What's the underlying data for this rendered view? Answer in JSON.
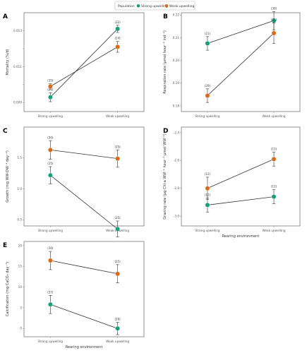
{
  "legend": {
    "title": "Population",
    "items": [
      {
        "label": "Strong upwelling",
        "color": "#1a9e77"
      },
      {
        "label": "Weak upwelling",
        "color": "#d96a1a"
      }
    ]
  },
  "chart_data": [
    {
      "panel": "A",
      "type": "line",
      "ylabel": "Mortality (%/d)",
      "xlabel": "",
      "categories": [
        "Strong upwelling",
        "Weak upwelling"
      ],
      "ylim": [
        0.0085,
        0.014
      ],
      "yticks": [
        0.009,
        0.01,
        0.011,
        0.012,
        0.013
      ],
      "ytick_labels": [
        "0.009",
        "",
        "0.011",
        "",
        "0.013"
      ],
      "series": [
        {
          "name": "Strong upwelling",
          "values": [
            0.0093,
            0.0131
          ],
          "err": [
            0.00025,
            0.0002
          ],
          "n": [
            "(21)",
            "(32)"
          ]
        },
        {
          "name": "Weak upwelling",
          "values": [
            0.0099,
            0.0121
          ],
          "err": [
            0.00015,
            0.0003
          ],
          "n": [
            "(35)",
            "(24)"
          ]
        }
      ]
    },
    {
      "panel": "B",
      "type": "line",
      "ylabel": "Respiration rate (µmol hour⁻¹ ind⁻¹)",
      "xlabel": "",
      "categories": [
        "Strong upwelling",
        "Weak upwelling"
      ],
      "ylim": [
        0.1775,
        0.221
      ],
      "yticks": [
        0.18,
        0.19,
        0.2,
        0.21,
        0.22
      ],
      "ytick_labels": [
        "0.18",
        "0.19",
        "0.20",
        "0.21",
        "0.22"
      ],
      "series": [
        {
          "name": "Strong upwelling",
          "values": [
            0.2075,
            0.2175
          ],
          "err": [
            0.003,
            0.004
          ],
          "n": [
            "(21)",
            "(30)"
          ]
        },
        {
          "name": "Weak upwelling",
          "values": [
            0.1845,
            0.212
          ],
          "err": [
            0.003,
            0.0045
          ],
          "n": [
            "(29)",
            "(31)"
          ]
        }
      ]
    },
    {
      "panel": "C",
      "type": "line",
      "ylabel": "Growth (mg WW-DW⁻¹ day⁻¹)",
      "xlabel": "",
      "categories": [
        "Strong upwelling",
        "Weak upwelling"
      ],
      "ylim": [
        0.4,
        2.0
      ],
      "yticks": [
        0.5,
        1.0,
        1.5
      ],
      "ytick_labels": [
        "0.5",
        "1.0",
        "1.5"
      ],
      "series": [
        {
          "name": "Strong upwelling",
          "values": [
            1.22,
            0.35
          ],
          "err": [
            0.14,
            0.13
          ],
          "n": [
            "(25)",
            "(25)"
          ]
        },
        {
          "name": "Weak upwelling",
          "values": [
            1.63,
            1.49
          ],
          "err": [
            0.15,
            0.14
          ],
          "n": [
            "(30)",
            "(25)"
          ]
        }
      ]
    },
    {
      "panel": "D",
      "type": "line",
      "ylabel": "Grazing rate (μg Chl-a WW⁻¹ hour⁻¹ μmol WW⁻¹)",
      "xlabel": "Rearing environment",
      "categories": [
        "Strong upwelling",
        "Weak upwelling"
      ],
      "ylim": [
        -3.07,
        -2.36
      ],
      "yticks": [
        -3.0,
        -2.8,
        -2.6,
        -2.4
      ],
      "ytick_labels": [
        "-3.0",
        "-2.8",
        "-2.6",
        "-2.4"
      ],
      "series": [
        {
          "name": "Strong upwelling",
          "values": [
            -2.92,
            -2.86
          ],
          "err": [
            0.05,
            0.05
          ],
          "n": [
            "(12)",
            "(11)"
          ]
        },
        {
          "name": "Weak upwelling",
          "values": [
            -2.8,
            -2.59
          ],
          "err": [
            0.08,
            0.05
          ],
          "n": [
            "(12)",
            "(13)"
          ]
        }
      ]
    },
    {
      "panel": "E",
      "type": "line",
      "ylabel": "Calcification (mg CaCO₃ day⁻¹)",
      "xlabel": "Rearing environment",
      "categories": [
        "Strong upwelling",
        "Weak upwelling"
      ],
      "ylim": [
        -2,
        21
      ],
      "yticks": [
        0,
        5,
        10,
        15,
        20
      ],
      "ytick_labels": [
        "0",
        "5",
        "10",
        "15",
        "20"
      ],
      "series": [
        {
          "name": "Strong upwelling",
          "values": [
            5.8,
            0.0
          ],
          "err": [
            2.2,
            1.5
          ],
          "n": [
            "(27)",
            "(26)"
          ]
        },
        {
          "name": "Weak upwelling",
          "values": [
            16.4,
            13.2
          ],
          "err": [
            2.2,
            2.2
          ],
          "n": [
            "(30)",
            "(25)"
          ]
        }
      ]
    }
  ]
}
